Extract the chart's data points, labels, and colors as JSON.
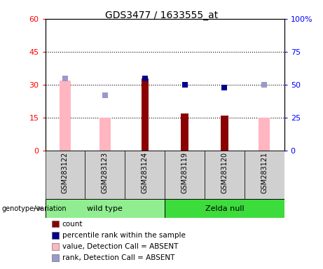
{
  "title": "GDS3477 / 1633555_at",
  "samples": [
    "GSM283122",
    "GSM283123",
    "GSM283124",
    "GSM283119",
    "GSM283120",
    "GSM283121"
  ],
  "left_ylim": [
    0,
    60
  ],
  "right_ylim": [
    0,
    100
  ],
  "left_yticks": [
    0,
    15,
    30,
    45,
    60
  ],
  "left_yticklabels": [
    "0",
    "15",
    "30",
    "45",
    "60"
  ],
  "right_yticks": [
    0,
    25,
    50,
    75,
    100
  ],
  "right_yticklabels": [
    "0",
    "25",
    "50",
    "75",
    "100%"
  ],
  "count_values": [
    null,
    null,
    33,
    17,
    16,
    null
  ],
  "percentile_values": [
    null,
    null,
    55,
    50,
    48,
    null
  ],
  "absent_value_bars": [
    32,
    15,
    null,
    null,
    null,
    15
  ],
  "absent_rank_dots": [
    55,
    42,
    null,
    null,
    null,
    50
  ],
  "count_color": "#8b0000",
  "percentile_color": "#00008b",
  "absent_value_color": "#ffb6c1",
  "absent_rank_color": "#9999cc",
  "legend_items": [
    {
      "label": "count",
      "color": "#8b0000"
    },
    {
      "label": "percentile rank within the sample",
      "color": "#00008b"
    },
    {
      "label": "value, Detection Call = ABSENT",
      "color": "#ffb6c1"
    },
    {
      "label": "rank, Detection Call = ABSENT",
      "color": "#9999cc"
    }
  ]
}
